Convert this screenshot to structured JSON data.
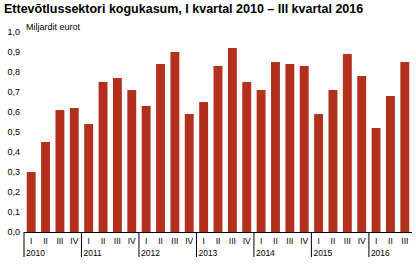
{
  "chart_data": {
    "type": "bar",
    "title": "Ettevõtlussektori kogukasum, I kvartal 2010 – III kvartal 2016",
    "y_label": "Miljardit eurot",
    "categories": [
      "I",
      "II",
      "III",
      "IV",
      "I",
      "II",
      "III",
      "IV",
      "I",
      "II",
      "III",
      "IV",
      "I",
      "II",
      "III",
      "IV",
      "I",
      "II",
      "III",
      "IV",
      "I",
      "II",
      "III",
      "IV",
      "I",
      "II",
      "III"
    ],
    "groups": [
      "2010",
      "2010",
      "2010",
      "2010",
      "2011",
      "2011",
      "2011",
      "2011",
      "2012",
      "2012",
      "2012",
      "2012",
      "2013",
      "2013",
      "2013",
      "2013",
      "2014",
      "2014",
      "2014",
      "2014",
      "2015",
      "2015",
      "2015",
      "2015",
      "2016",
      "2016",
      "2016"
    ],
    "values": [
      0.3,
      0.45,
      0.61,
      0.62,
      0.54,
      0.75,
      0.77,
      0.71,
      0.63,
      0.84,
      0.9,
      0.59,
      0.65,
      0.83,
      0.92,
      0.75,
      0.71,
      0.85,
      0.84,
      0.83,
      0.59,
      0.71,
      0.89,
      0.78,
      0.52,
      0.68,
      0.85
    ],
    "color": "#b3301d",
    "ylim": [
      0,
      1
    ],
    "yticks": [
      {
        "value": 0,
        "label": "0,0"
      },
      {
        "value": 0.1,
        "label": "0,1"
      },
      {
        "value": 0.2,
        "label": "0,2"
      },
      {
        "value": 0.3,
        "label": "0,3"
      },
      {
        "value": 0.4,
        "label": "0,4"
      },
      {
        "value": 0.5,
        "label": "0,5"
      },
      {
        "value": 0.6,
        "label": "0,6"
      },
      {
        "value": 0.7,
        "label": "0,7"
      },
      {
        "value": 0.8,
        "label": "0,8"
      },
      {
        "value": 0.9,
        "label": "0,9"
      },
      {
        "value": 1,
        "label": "1,0"
      }
    ],
    "grid": false
  }
}
